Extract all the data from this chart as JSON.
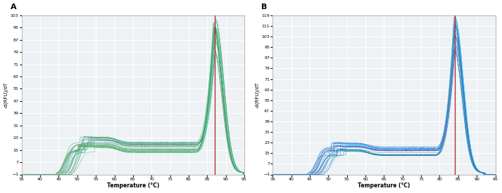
{
  "panel_A": {
    "label": "A",
    "xlabel": "Temperature (°C)",
    "ylabel": "-d(RFU)/dT",
    "xlim": [
      35,
      95
    ],
    "ylim": [
      -1,
      103
    ],
    "yticks": [
      -1.0,
      7.0,
      15.0,
      23.0,
      31.0,
      39.0,
      47.0,
      55.0,
      63.0,
      71.0,
      79.0,
      87.0,
      95.0,
      103.0
    ],
    "xticks": [
      35,
      40,
      45,
      50,
      55,
      60,
      65,
      70,
      75,
      80,
      85,
      90,
      95
    ],
    "peak_temp": 87,
    "vertical_line_color": "#b22222",
    "background_color": "#eef2f5",
    "grid_color": "#ffffff"
  },
  "panel_B": {
    "label": "B",
    "xlabel": "Temperature (°C)",
    "ylabel": "-d(RFU)/dT",
    "xlim": [
      35,
      95
    ],
    "ylim": [
      -1,
      119
    ],
    "yticks": [
      -1.0,
      7.0,
      15.0,
      23.0,
      31.0,
      39.0,
      47.0,
      55.0,
      63.0,
      71.0,
      79.0,
      87.0,
      95.0,
      103.0,
      111.0,
      119.0
    ],
    "xticks": [
      35,
      40,
      45,
      50,
      55,
      60,
      65,
      70,
      75,
      80,
      85,
      90,
      95
    ],
    "peak_temp": 84,
    "vertical_line_color": "#b22222",
    "background_color": "#eef2f5",
    "grid_color": "#ffffff"
  },
  "colors_A": [
    "#2e8b57",
    "#3cb371",
    "#20b2aa",
    "#008080",
    "#5f9ea0",
    "#6b8e23",
    "#9acd32",
    "#66cdaa",
    "#40e0d0",
    "#2f6f5f",
    "#4682b4",
    "#556b2f",
    "#8fbc8f",
    "#3e8e8e",
    "#7cbc9a",
    "#2d9a6a",
    "#1e8a5e",
    "#4aae7a",
    "#5abe8a",
    "#6ace9a",
    "#7ade9a",
    "#3a9e6a",
    "#2a8e5a",
    "#1a7e4a",
    "#0a6e3a"
  ],
  "colors_B": [
    "#1e90ff",
    "#4169e1",
    "#0000cd",
    "#6495ed",
    "#00bfff",
    "#20b2aa",
    "#008b8b",
    "#5f9ea0",
    "#4682b4",
    "#7b68ee",
    "#6a5acd",
    "#483d8b",
    "#40e0d0",
    "#00ced1",
    "#1e80dd",
    "#4488cc",
    "#2277bb",
    "#0066aa",
    "#5599cc",
    "#3388bb",
    "#7777cc",
    "#5566bb",
    "#4455aa",
    "#9988dd",
    "#cc88ee"
  ],
  "seed": 42
}
